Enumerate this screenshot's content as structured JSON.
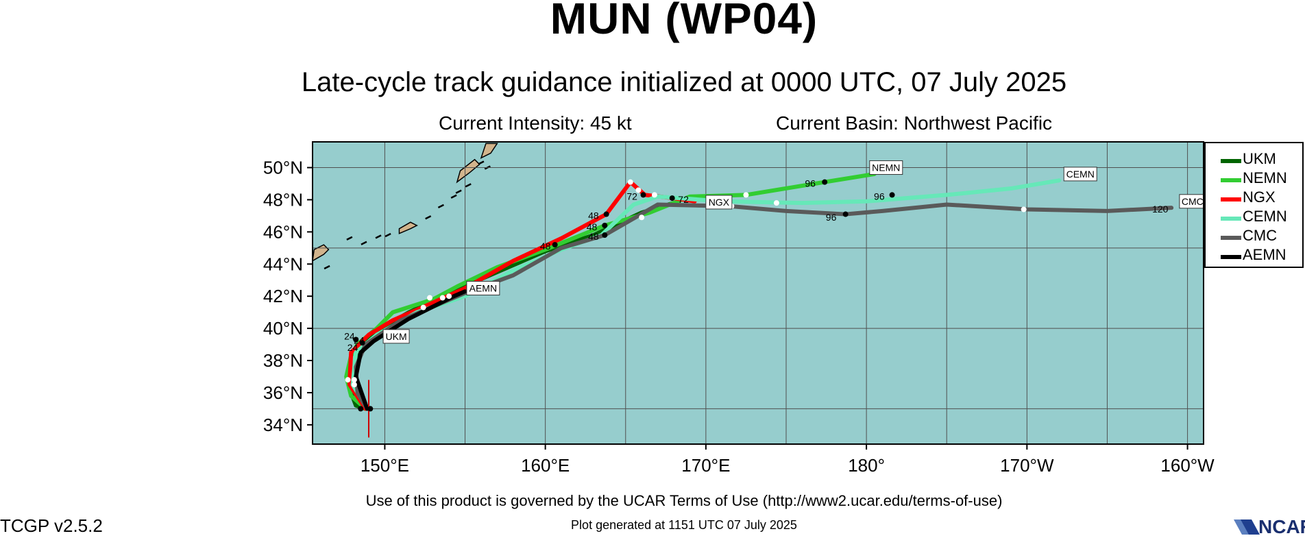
{
  "header": {
    "title": "MUN (WP04)",
    "subtitle": "Late-cycle track guidance initialized at 0000 UTC, 07 July 2025",
    "intensity": "Current Intensity: 45 kt",
    "basin": "Current Basin: Northwest Pacific"
  },
  "footer": {
    "terms": "Use of this product is governed by the UCAR Terms of Use (http://www2.ucar.edu/terms-of-use)",
    "version": "TCGP v2.5.2",
    "generated": "Plot generated at 1151 UTC   07 July 2025",
    "logo_text": "NCAR"
  },
  "colors": {
    "ocean": "#96cdcd",
    "land": "#d2b48c",
    "grid": "#505050"
  },
  "chart_data": {
    "type": "line",
    "x_axis": {
      "label": "longitude",
      "range_deg_east": [
        145.5,
        201
      ],
      "ticks": [
        "150°E",
        "160°E",
        "170°E",
        "180°",
        "170°W",
        "160°W"
      ],
      "tick_values": [
        150,
        160,
        170,
        180,
        190,
        200
      ]
    },
    "y_axis": {
      "label": "latitude",
      "range_deg_north": [
        32.8,
        51.6
      ],
      "ticks": [
        "34°N",
        "36°N",
        "38°N",
        "40°N",
        "42°N",
        "44°N",
        "46°N",
        "48°N",
        "50°N"
      ],
      "tick_values": [
        34,
        36,
        38,
        40,
        42,
        44,
        46,
        48,
        50
      ]
    },
    "grid": true,
    "legend_position": "right",
    "current_position": {
      "lon": 149,
      "lat": 35
    },
    "series": [
      {
        "name": "UKM",
        "color": "#006400",
        "track": [
          [
            148.8,
            35.0
          ],
          [
            148.2,
            35.2
          ],
          [
            147.9,
            36.0
          ],
          [
            148.0,
            37.0
          ],
          [
            148.3,
            38.0
          ],
          [
            148.6,
            38.8
          ],
          [
            149.0,
            39.3
          ],
          [
            149.8,
            40.0
          ],
          [
            151.5,
            41.0
          ],
          [
            154.0,
            42.2
          ],
          [
            157.0,
            43.5
          ],
          [
            160.0,
            44.8
          ],
          [
            163.0,
            45.8
          ],
          [
            166.0,
            47.2
          ],
          [
            168.0,
            47.8
          ]
        ],
        "labels": [
          {
            "text": "24",
            "lon": 147.8,
            "lat": 39.3
          },
          {
            "text": "24",
            "lon": 148.4,
            "lat": 39.05
          }
        ],
        "end_label": "UKM",
        "end_label_at": [
          149.9,
          39.5
        ]
      },
      {
        "name": "NEMN",
        "color": "#32cd32",
        "track": [
          [
            148.8,
            35.0
          ],
          [
            147.9,
            35.8
          ],
          [
            147.6,
            37.0
          ],
          [
            147.9,
            38.3
          ],
          [
            148.3,
            39.0
          ],
          [
            149.5,
            40.0
          ],
          [
            150.5,
            41.0
          ],
          [
            153.0,
            41.8
          ],
          [
            154.5,
            42.6
          ],
          [
            157.0,
            43.8
          ],
          [
            160.0,
            44.9
          ],
          [
            163.7,
            46.4
          ],
          [
            166.5,
            47.2
          ],
          [
            169.0,
            48.2
          ],
          [
            172.5,
            48.3
          ],
          [
            177.4,
            49.1
          ],
          [
            180.5,
            49.6
          ]
        ],
        "labels": [
          {
            "text": "96",
            "lon": 176.5,
            "lat": 48.8
          }
        ],
        "end_label": "NEMN",
        "end_label_at": [
          180.2,
          50.0
        ]
      },
      {
        "name": "NGX",
        "color": "#ff0000",
        "track": [
          [
            148.8,
            35.0
          ],
          [
            147.8,
            36.5
          ],
          [
            147.9,
            38.5
          ],
          [
            149.0,
            39.6
          ],
          [
            150.5,
            40.5
          ],
          [
            153.0,
            41.6
          ],
          [
            155.0,
            42.5
          ],
          [
            158.0,
            44.2
          ],
          [
            161.0,
            45.6
          ],
          [
            163.8,
            47.1
          ],
          [
            165.3,
            49.1
          ],
          [
            166.2,
            48.3
          ],
          [
            168.0,
            48.1
          ],
          [
            169.3,
            47.9
          ]
        ],
        "labels": [
          {
            "text": "48",
            "lon": 163.0,
            "lat": 46.8
          },
          {
            "text": "72",
            "lon": 165.4,
            "lat": 48.0
          },
          {
            "text": "72",
            "lon": 168.6,
            "lat": 47.8
          }
        ],
        "end_label": "NGX",
        "end_label_at": [
          170.0,
          47.85
        ]
      },
      {
        "name": "CEMN",
        "color": "#66e8b8",
        "track": [
          [
            148.9,
            35.0
          ],
          [
            148.0,
            36.5
          ],
          [
            148.2,
            38.5
          ],
          [
            149.5,
            39.6
          ],
          [
            152.0,
            41.0
          ],
          [
            155.0,
            42.0
          ],
          [
            158.0,
            43.6
          ],
          [
            161.0,
            44.9
          ],
          [
            163.5,
            45.8
          ],
          [
            165.5,
            47.7
          ],
          [
            167.0,
            48.2
          ],
          [
            171.0,
            47.9
          ],
          [
            176.0,
            47.8
          ],
          [
            180.0,
            47.9
          ],
          [
            185.0,
            48.3
          ],
          [
            189.0,
            48.7
          ],
          [
            192.0,
            49.2
          ]
        ],
        "labels": [
          {
            "text": "96",
            "lon": 180.8,
            "lat": 48.0
          }
        ],
        "end_label": "CEMN",
        "end_label_at": [
          192.3,
          49.6
        ]
      },
      {
        "name": "CMC",
        "color": "#5a5a5a",
        "track": [
          [
            148.9,
            35.0
          ],
          [
            148.3,
            36.0
          ],
          [
            148.2,
            37.6
          ],
          [
            148.8,
            39.0
          ],
          [
            151.0,
            40.5
          ],
          [
            155.0,
            42.2
          ],
          [
            158.0,
            43.3
          ],
          [
            161.0,
            45.0
          ],
          [
            163.7,
            45.8
          ],
          [
            167.0,
            47.7
          ],
          [
            171.5,
            47.6
          ],
          [
            175.0,
            47.3
          ],
          [
            178.7,
            47.1
          ],
          [
            181.0,
            47.3
          ],
          [
            185.0,
            47.7
          ],
          [
            190.0,
            47.4
          ],
          [
            195.0,
            47.3
          ],
          [
            199.0,
            47.5
          ]
        ],
        "labels": [
          {
            "text": "48",
            "lon": 163.0,
            "lat": 45.5
          },
          {
            "text": "96",
            "lon": 177.8,
            "lat": 46.7
          },
          {
            "text": "120",
            "lon": 198.3,
            "lat": 47.2
          }
        ],
        "end_label": "CMC",
        "end_label_at": [
          199.5,
          47.9
        ]
      },
      {
        "name": "AEMN",
        "color": "#000000",
        "track": [
          [
            148.9,
            35.0
          ],
          [
            148.2,
            37.0
          ],
          [
            148.5,
            38.5
          ],
          [
            149.3,
            39.2
          ],
          [
            151.5,
            40.6
          ],
          [
            154.3,
            42.0
          ],
          [
            155.0,
            42.3
          ]
        ],
        "labels": [
          {
            "text": "48",
            "lon": 162.9,
            "lat": 46.1
          },
          {
            "text": "48",
            "lon": 160.0,
            "lat": 44.9
          },
          {
            "text": "24",
            "lon": 148.0,
            "lat": 38.6
          }
        ],
        "end_label": "AEMN",
        "end_label_at": [
          155.1,
          42.5
        ]
      }
    ],
    "markers_black": [
      [
        148.5,
        35.0
      ],
      [
        149.1,
        35.0
      ],
      [
        163.8,
        47.1
      ],
      [
        163.7,
        46.4
      ],
      [
        163.7,
        45.8
      ],
      [
        160.6,
        45.2
      ],
      [
        166.1,
        48.3
      ],
      [
        167.9,
        48.1
      ],
      [
        177.4,
        49.1
      ],
      [
        181.6,
        48.3
      ],
      [
        178.7,
        47.1
      ],
      [
        148.2,
        39.3
      ],
      [
        148.6,
        39.1
      ]
    ],
    "markers_white": [
      [
        147.7,
        36.8
      ],
      [
        148.1,
        36.5
      ],
      [
        148.1,
        36.8
      ],
      [
        152.4,
        41.3
      ],
      [
        152.8,
        41.9
      ],
      [
        153.6,
        41.9
      ],
      [
        154.0,
        42.0
      ],
      [
        165.3,
        49.1
      ],
      [
        165.8,
        48.6
      ],
      [
        166.8,
        48.3
      ],
      [
        166.0,
        46.9
      ],
      [
        172.5,
        48.3
      ],
      [
        171.6,
        47.6
      ],
      [
        174.4,
        47.8
      ],
      [
        189.8,
        47.4
      ]
    ]
  }
}
